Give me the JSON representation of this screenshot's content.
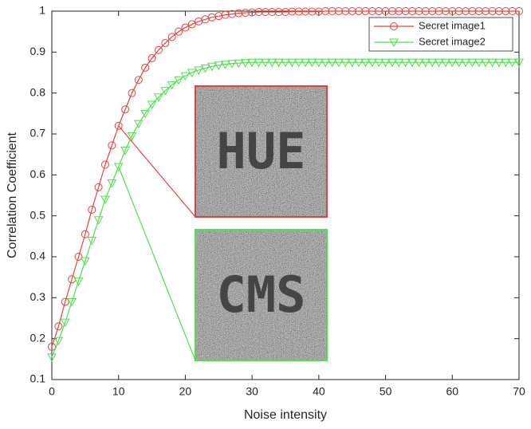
{
  "chart_data": {
    "type": "line",
    "xlabel": "Noise intensity",
    "ylabel": "Correlation Coefficient",
    "x": [
      0,
      1,
      2,
      3,
      4,
      5,
      6,
      7,
      8,
      9,
      10,
      11,
      12,
      13,
      14,
      15,
      16,
      17,
      18,
      19,
      20,
      21,
      22,
      23,
      24,
      25,
      26,
      27,
      28,
      29,
      30,
      31,
      32,
      33,
      34,
      35,
      36,
      37,
      38,
      39,
      40,
      41,
      42,
      43,
      44,
      45,
      46,
      47,
      48,
      49,
      50,
      51,
      52,
      53,
      54,
      55,
      56,
      57,
      58,
      59,
      60,
      61,
      62,
      63,
      64,
      65,
      66,
      67,
      68,
      69,
      70
    ],
    "series": [
      {
        "name": "Secret image1",
        "color": "#e8413c",
        "marker": "circle",
        "values": [
          0.18,
          0.23,
          0.29,
          0.345,
          0.4,
          0.455,
          0.515,
          0.57,
          0.625,
          0.672,
          0.72,
          0.76,
          0.8,
          0.832,
          0.862,
          0.885,
          0.905,
          0.922,
          0.937,
          0.95,
          0.96,
          0.968,
          0.975,
          0.98,
          0.985,
          0.988,
          0.991,
          0.993,
          0.995,
          0.996,
          0.997,
          0.998,
          0.998,
          0.998,
          0.998,
          0.998,
          0.999,
          0.999,
          0.999,
          0.999,
          0.999,
          1,
          1,
          1,
          1,
          1,
          1,
          1,
          1,
          1,
          1,
          1,
          1,
          1,
          1,
          1,
          1,
          1,
          1,
          1,
          1,
          1,
          1,
          1,
          1,
          1,
          1,
          1,
          1,
          1,
          1
        ]
      },
      {
        "name": "Secret image2",
        "color": "#4ee04e",
        "marker": "triangle-down",
        "values": [
          0.155,
          0.195,
          0.24,
          0.29,
          0.34,
          0.39,
          0.44,
          0.49,
          0.54,
          0.58,
          0.62,
          0.66,
          0.695,
          0.725,
          0.75,
          0.772,
          0.79,
          0.806,
          0.82,
          0.832,
          0.842,
          0.85,
          0.856,
          0.861,
          0.865,
          0.868,
          0.87,
          0.872,
          0.873,
          0.874,
          0.875,
          0.875,
          0.875,
          0.875,
          0.875,
          0.875,
          0.875,
          0.875,
          0.875,
          0.875,
          0.875,
          0.875,
          0.875,
          0.875,
          0.875,
          0.875,
          0.875,
          0.875,
          0.875,
          0.875,
          0.875,
          0.875,
          0.875,
          0.875,
          0.875,
          0.875,
          0.875,
          0.875,
          0.875,
          0.875,
          0.875,
          0.875,
          0.875,
          0.875,
          0.875,
          0.875,
          0.875,
          0.875,
          0.875,
          0.875,
          0.875
        ]
      }
    ],
    "xlim": [
      0,
      70
    ],
    "xticks": [
      0,
      10,
      20,
      30,
      40,
      50,
      60,
      70
    ],
    "ylim": [
      0.1,
      1
    ],
    "yticks": [
      0.1,
      0.2,
      0.3,
      0.4,
      0.5,
      0.6,
      0.7,
      0.8,
      0.9,
      1
    ],
    "legend": "upper right",
    "insets": [
      {
        "label": "HUE"
      },
      {
        "label": "CMS"
      }
    ]
  }
}
